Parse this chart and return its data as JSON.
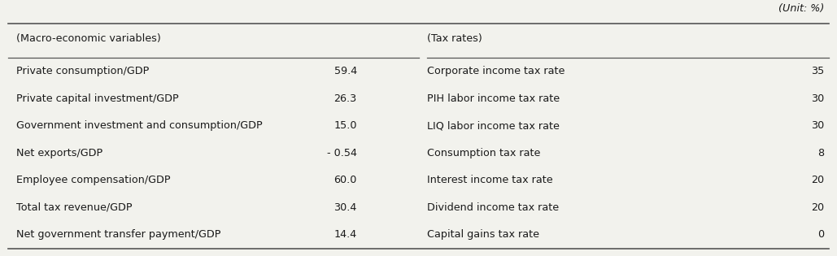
{
  "unit_label": "(Unit: %)",
  "left_header": "(Macro-economic variables)",
  "right_header": "(Tax rates)",
  "left_rows": [
    [
      "Private consumption/GDP",
      "59.4"
    ],
    [
      "Private capital investment/GDP",
      "26.3"
    ],
    [
      "Government investment and consumption/GDP",
      "15.0"
    ],
    [
      "Net exports/GDP",
      "- 0.54"
    ],
    [
      "Employee compensation/GDP",
      "60.0"
    ],
    [
      "Total tax revenue/GDP",
      "30.4"
    ],
    [
      "Net government transfer payment/GDP",
      "14.4"
    ]
  ],
  "right_rows": [
    [
      "Corporate income tax rate",
      "35"
    ],
    [
      "PIH labor income tax rate",
      "30"
    ],
    [
      "LIQ labor income tax rate",
      "30"
    ],
    [
      "Consumption tax rate",
      "8"
    ],
    [
      "Interest income tax rate",
      "20"
    ],
    [
      "Dividend income tax rate",
      "20"
    ],
    [
      "Capital gains tax rate",
      "0"
    ]
  ],
  "bg_color": "#f2f2ed",
  "text_color": "#1a1a1a",
  "line_color": "#555555",
  "font_size": 9.2,
  "header_font_size": 9.2
}
